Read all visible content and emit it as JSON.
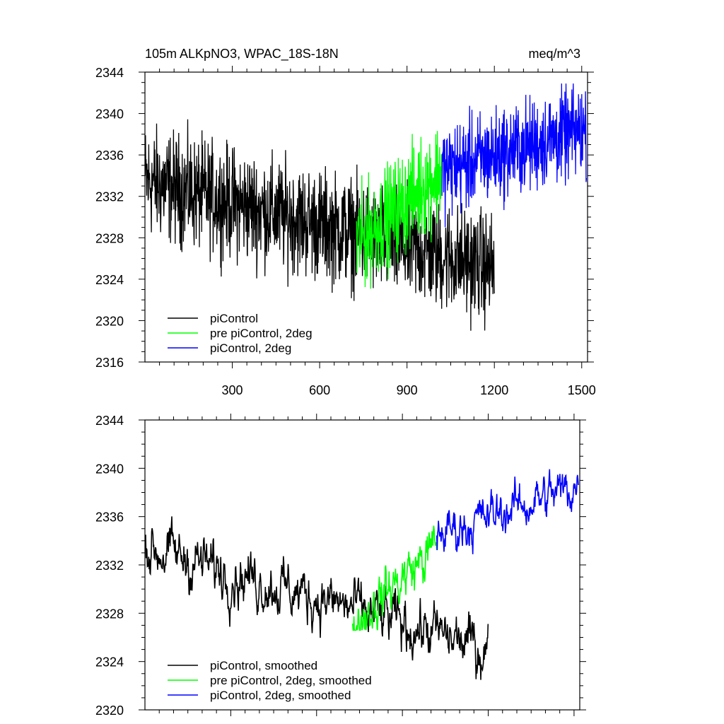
{
  "chart_data": [
    {
      "type": "line",
      "title": "105m ALKpNO3, WPAC_18S-18N",
      "units": "meq/m^3",
      "xlim": [
        0,
        1520
      ],
      "ylim": [
        2316,
        2344
      ],
      "x_ticks": [
        300,
        600,
        900,
        1200,
        1500
      ],
      "y_ticks": [
        2316,
        2320,
        2324,
        2328,
        2332,
        2336,
        2340,
        2344
      ],
      "legend_position": "bottom-left",
      "series": [
        {
          "name": "piControl",
          "color": "#000000",
          "x_range": [
            1,
            1200
          ],
          "mean_start": 2333.5,
          "mean_end": 2325.0,
          "noise": 2.6,
          "min": 2317.3,
          "max": 2340.8
        },
        {
          "name": "pre piControl, 2deg",
          "color": "#00ff00",
          "x_range": [
            726,
            1020
          ],
          "mean_start": 2327.5,
          "mean_end": 2334.5,
          "noise": 2.4,
          "min": 2322.8,
          "max": 2342.3
        },
        {
          "name": "piControl, 2deg",
          "color": "#0000ff",
          "x_range": [
            1020,
            1516
          ],
          "mean_start": 2334.5,
          "mean_end": 2338.5,
          "noise": 2.2,
          "min": 2328.2,
          "max": 2342.9
        }
      ]
    },
    {
      "type": "line",
      "xlim": [
        0,
        1520
      ],
      "ylim": [
        2320,
        2344
      ],
      "x_ticks": [
        300,
        600,
        900,
        1200,
        1500
      ],
      "y_ticks": [
        2320,
        2324,
        2328,
        2332,
        2336,
        2340,
        2344
      ],
      "legend_position": "bottom-left",
      "series": [
        {
          "name": "piControl, smoothed",
          "color": "#000000",
          "x_range": [
            1,
            1200
          ],
          "mean_start": 2333.5,
          "mean_end": 2325.0,
          "noise": 1.3,
          "min": 2321.8,
          "max": 2338.3
        },
        {
          "name": "pre piControl, 2deg, smoothed",
          "color": "#00ff00",
          "x_range": [
            726,
            1020
          ],
          "mean_start": 2327.2,
          "mean_end": 2333.5,
          "noise": 1.3,
          "min": 2326.6,
          "max": 2338.0
        },
        {
          "name": "piControl, 2deg, smoothed",
          "color": "#0000ff",
          "x_range": [
            1020,
            1516
          ],
          "mean_start": 2334.5,
          "mean_end": 2338.6,
          "noise": 1.1,
          "min": 2332.1,
          "max": 2340.1
        }
      ]
    }
  ]
}
